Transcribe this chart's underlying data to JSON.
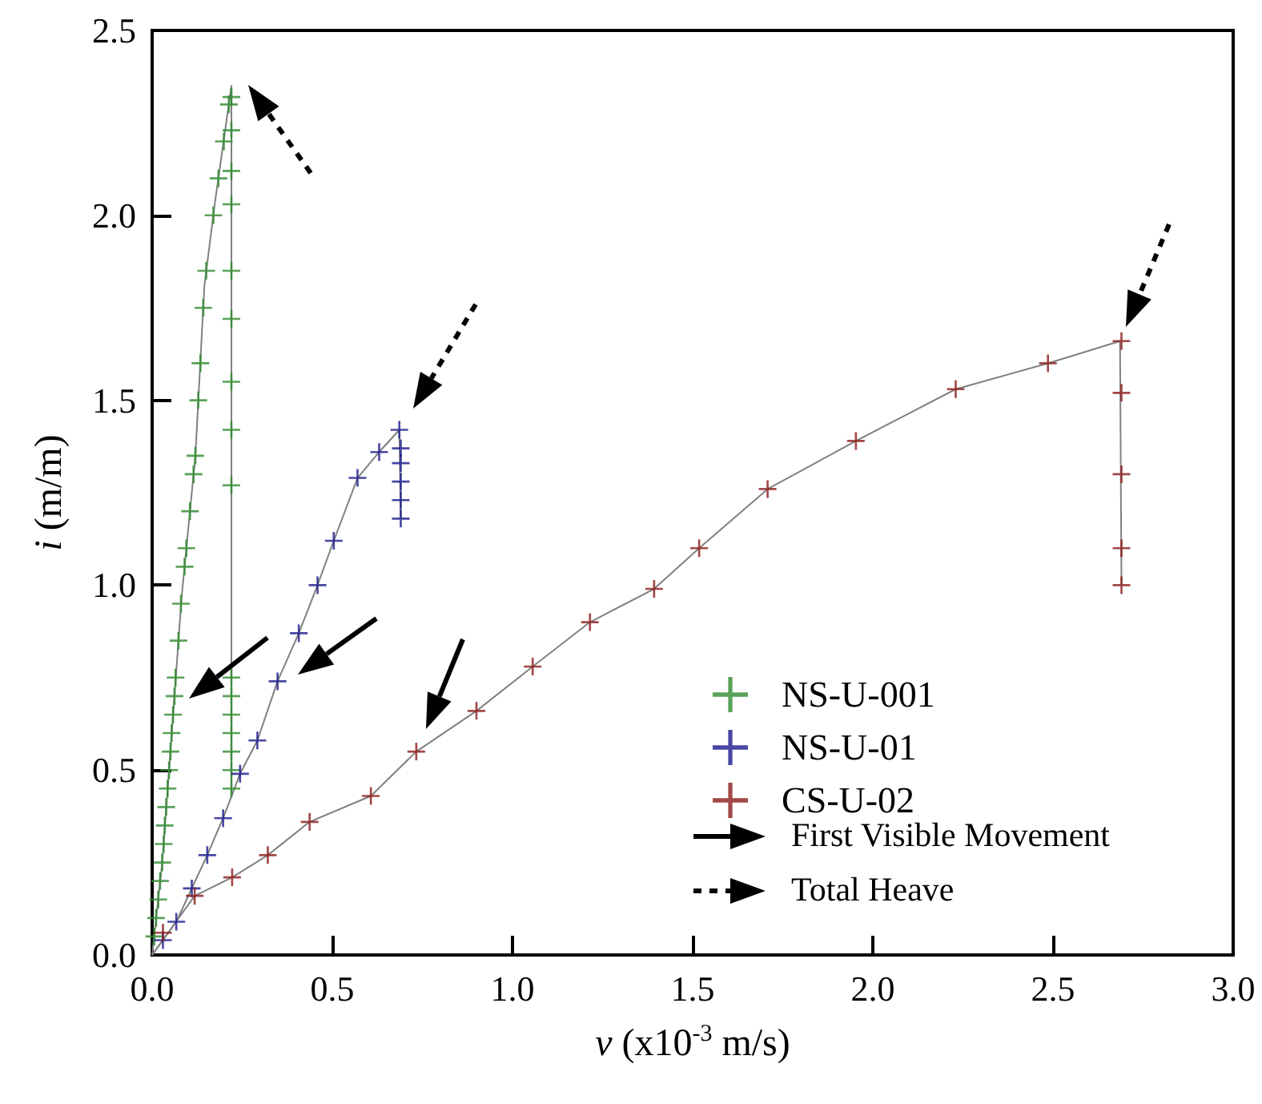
{
  "chart_data": {
    "type": "scatter",
    "xlabel": "v (x10$^{-3}$ m/s)",
    "ylabel": "i (m/m)",
    "xlim": [
      0,
      3
    ],
    "ylim": [
      0,
      2.5
    ],
    "xticks": [
      {
        "value": 0,
        "label": "0.0"
      },
      {
        "value": 0.5,
        "label": "0.5"
      },
      {
        "value": 1,
        "label": "1.0"
      },
      {
        "value": 1.5,
        "label": "1.5"
      },
      {
        "value": 2,
        "label": "2.0"
      },
      {
        "value": 2.5,
        "label": "2.5"
      },
      {
        "value": 3,
        "label": "3.0"
      }
    ],
    "yticks": [
      {
        "value": 0,
        "label": "0.0"
      },
      {
        "value": 0.5,
        "label": "0.5"
      },
      {
        "value": 1,
        "label": "1.0"
      },
      {
        "value": 1.5,
        "label": "1.5"
      },
      {
        "value": 2,
        "label": "2.0"
      },
      {
        "value": 2.5,
        "label": "2.5"
      }
    ],
    "grid": false,
    "legend": "bottom right",
    "marker": "cross",
    "annotations": [
      "First Visible Movement",
      "Total Heave"
    ],
    "series": [
      {
        "name": "NS-U-001",
        "color": "#2e8b2e",
        "x": [
          0.006,
          0.011,
          0.017,
          0.022,
          0.028,
          0.032,
          0.035,
          0.039,
          0.043,
          0.047,
          0.051,
          0.054,
          0.058,
          0.062,
          0.065,
          0.073,
          0.08,
          0.09,
          0.095,
          0.105,
          0.115,
          0.12,
          0.128,
          0.134,
          0.142,
          0.15,
          0.17,
          0.184,
          0.199,
          0.213,
          0.22,
          0.22,
          0.22,
          0.22,
          0.22,
          0.22,
          0.22,
          0.22,
          0.22,
          0.22,
          0.22,
          0.22,
          0.22,
          0.22,
          0.22,
          0.22
        ],
        "values": [
          0.05,
          0.1,
          0.15,
          0.2,
          0.25,
          0.3,
          0.35,
          0.4,
          0.45,
          0.5,
          0.55,
          0.6,
          0.65,
          0.7,
          0.75,
          0.85,
          0.95,
          1.05,
          1.1,
          1.2,
          1.3,
          1.35,
          1.5,
          1.6,
          1.75,
          1.85,
          2.0,
          2.1,
          2.2,
          2.3,
          2.32,
          2.23,
          2.12,
          2.03,
          1.85,
          1.72,
          1.55,
          1.42,
          1.27,
          0.75,
          0.7,
          0.65,
          0.6,
          0.55,
          0.5,
          0.45
        ]
      },
      {
        "name": "NS-U-01",
        "color": "#1a1a8c",
        "x": [
          0.03,
          0.067,
          0.11,
          0.153,
          0.197,
          0.244,
          0.292,
          0.348,
          0.407,
          0.459,
          0.504,
          0.57,
          0.63,
          0.686,
          0.69,
          0.69,
          0.69,
          0.69,
          0.69
        ],
        "values": [
          0.04,
          0.09,
          0.18,
          0.27,
          0.37,
          0.49,
          0.58,
          0.74,
          0.87,
          1.0,
          1.12,
          1.29,
          1.36,
          1.42,
          1.37,
          1.33,
          1.28,
          1.23,
          1.18
        ]
      },
      {
        "name": "CS-U-02",
        "color": "#8b1a1a",
        "x": [
          0.03,
          0.118,
          0.222,
          0.321,
          0.437,
          0.607,
          0.733,
          0.9,
          1.056,
          1.215,
          1.393,
          1.518,
          1.708,
          1.953,
          2.23,
          2.486,
          2.69,
          2.69,
          2.69,
          2.69,
          2.69
        ],
        "values": [
          0.06,
          0.16,
          0.21,
          0.27,
          0.36,
          0.43,
          0.55,
          0.66,
          0.78,
          0.9,
          0.99,
          1.1,
          1.26,
          1.39,
          1.53,
          1.6,
          1.66,
          1.52,
          1.3,
          1.1,
          1.0
        ]
      },
      {
        "type": "line",
        "color": "#808080",
        "marker": "none",
        "x": [
          0,
          0.028,
          0.053,
          0.082,
          0.12,
          0.145,
          0.175,
          0.22,
          0.22
        ],
        "values": [
          0,
          0.25,
          0.58,
          0.97,
          1.35,
          1.81,
          2.04,
          2.35,
          0.43
        ]
      },
      {
        "type": "line",
        "color": "#808080",
        "marker": "none",
        "x": [
          0,
          0.067,
          0.153,
          0.197,
          0.244,
          0.292,
          0.348,
          0.407,
          0.459,
          0.504,
          0.57,
          0.63,
          0.686,
          0.69
        ],
        "values": [
          0,
          0.09,
          0.27,
          0.37,
          0.49,
          0.58,
          0.74,
          0.87,
          1.0,
          1.12,
          1.29,
          1.36,
          1.42,
          1.18
        ]
      },
      {
        "type": "line",
        "color": "#808080",
        "marker": "none",
        "x": [
          0,
          0.118,
          0.222,
          0.321,
          0.437,
          0.607,
          0.733,
          0.9,
          1.056,
          1.215,
          1.393,
          1.518,
          1.708,
          1.953,
          2.23,
          2.486,
          2.686,
          2.69
        ],
        "values": [
          0,
          0.16,
          0.21,
          0.27,
          0.36,
          0.43,
          0.55,
          0.66,
          0.78,
          0.9,
          0.99,
          1.1,
          1.26,
          1.39,
          1.53,
          1.6,
          1.66,
          1.0
        ]
      }
    ]
  }
}
